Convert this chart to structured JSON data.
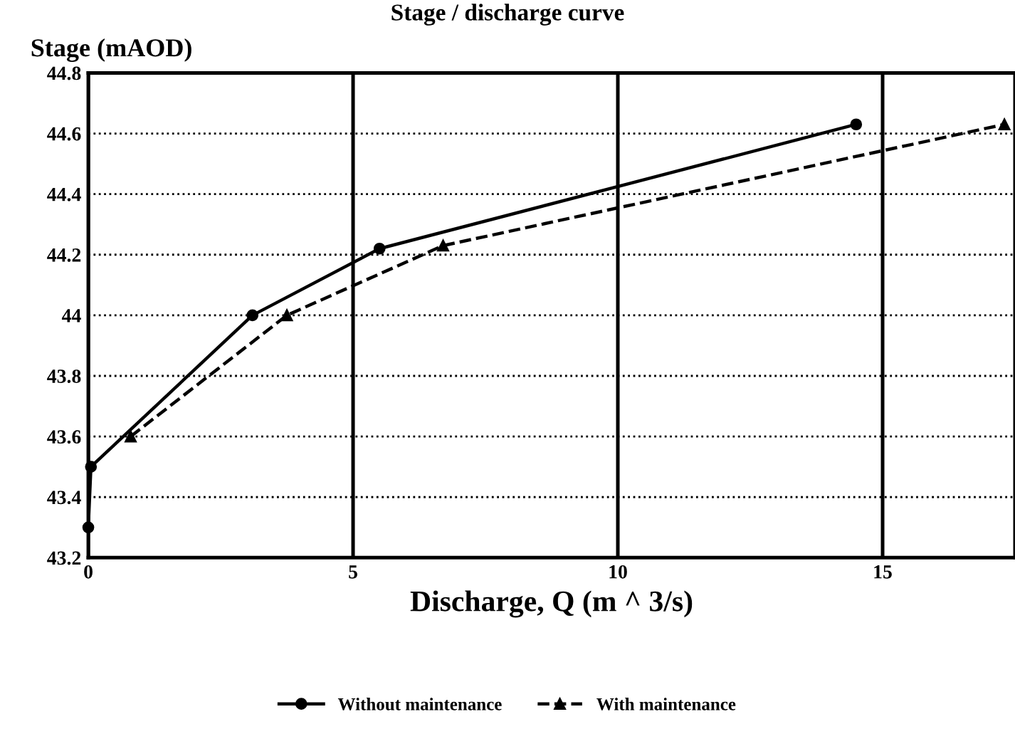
{
  "chart_data": {
    "type": "line",
    "title": "Stage / discharge curve",
    "ylabel": "Stage (mAOD)",
    "xlabel": "Discharge, Q (m ^ 3/s)",
    "series": [
      {
        "name": "Without maintenance",
        "color": "#000000",
        "line_style": "solid",
        "marker": "circle",
        "x": [
          0,
          0.05,
          3.1,
          5.5,
          14.5
        ],
        "values": [
          43.3,
          43.5,
          44.0,
          44.22,
          44.63
        ]
      },
      {
        "name": "With maintenance",
        "color": "#000000",
        "line_style": "dashed",
        "marker": "triangle",
        "x": [
          0.8,
          3.75,
          6.7,
          17.3
        ],
        "values": [
          43.6,
          44.0,
          44.23,
          44.63
        ]
      }
    ],
    "xlim": [
      0,
      17.5
    ],
    "xticks": [
      0,
      5,
      10,
      15
    ],
    "ylim": [
      43.2,
      44.8
    ],
    "yticks": [
      43.2,
      43.4,
      43.6,
      43.8,
      44,
      44.2,
      44.4,
      44.6,
      44.8
    ],
    "grid": true,
    "legend": "bottom"
  }
}
